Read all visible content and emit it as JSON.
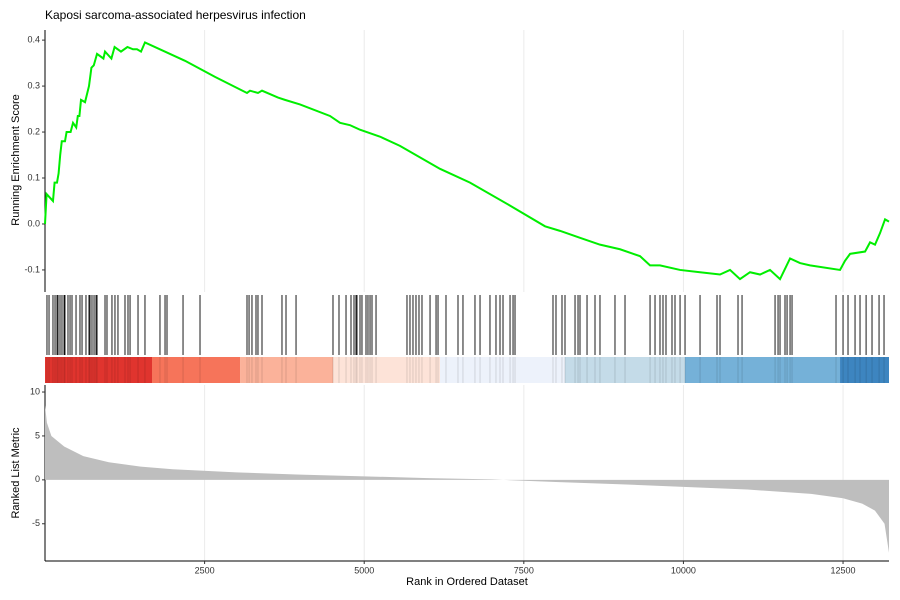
{
  "chart_data": [
    {
      "type": "line",
      "title": "Kaposi sarcoma-associated herpesvirus infection",
      "ylabel": "Running Enrichment Score",
      "color": "#00ee00",
      "xlim": [
        0,
        13220
      ],
      "ylim": [
        -0.148,
        0.422
      ],
      "grid": true,
      "yticks": [
        -0.1,
        {
          "value": 0,
          "label": "0.0"
        },
        0.1,
        0.2,
        0.3,
        0.4
      ],
      "x": [
        0,
        25,
        125,
        150,
        188,
        213,
        238,
        263,
        313,
        338,
        401,
        439,
        489,
        514,
        539,
        564,
        627,
        689,
        727,
        764,
        815,
        915,
        940,
        1040,
        1090,
        1190,
        1291,
        1378,
        1441,
        1504,
        1566,
        2193,
        2663,
        3164,
        3211,
        3336,
        3399,
        3650,
        3759,
        3994,
        4464,
        4621,
        4777,
        4934,
        5247,
        5560,
        6187,
        6657,
        7284,
        7832,
        8067,
        8380,
        8693,
        9007,
        9320,
        9477,
        9633,
        9947,
        10260,
        10573,
        10730,
        10886,
        11043,
        11200,
        11356,
        11513,
        11670,
        11826,
        11983,
        12453,
        12531,
        12610,
        12845,
        12923,
        13001,
        13079,
        13158,
        13220
      ],
      "values": [
        0.0,
        0.065,
        0.05,
        0.09,
        0.09,
        0.11,
        0.15,
        0.18,
        0.18,
        0.2,
        0.2,
        0.22,
        0.21,
        0.235,
        0.235,
        0.27,
        0.265,
        0.3,
        0.34,
        0.345,
        0.37,
        0.36,
        0.375,
        0.36,
        0.385,
        0.375,
        0.385,
        0.38,
        0.38,
        0.375,
        0.395,
        0.355,
        0.32,
        0.285,
        0.29,
        0.285,
        0.29,
        0.275,
        0.27,
        0.26,
        0.235,
        0.22,
        0.215,
        0.205,
        0.19,
        0.17,
        0.12,
        0.09,
        0.04,
        -0.005,
        -0.015,
        -0.03,
        -0.045,
        -0.055,
        -0.07,
        -0.09,
        -0.09,
        -0.1,
        -0.105,
        -0.11,
        -0.1,
        -0.12,
        -0.105,
        -0.11,
        -0.1,
        -0.12,
        -0.075,
        -0.085,
        -0.09,
        -0.1,
        -0.08,
        -0.065,
        -0.06,
        -0.04,
        -0.045,
        -0.02,
        0.01,
        0.005
      ]
    },
    {
      "type": "rug",
      "color": "#000000",
      "xlim": [
        0,
        13220
      ],
      "hits": [
        31,
        63,
        125,
        157,
        188,
        204,
        235,
        266,
        298,
        313,
        360,
        392,
        423,
        486,
        548,
        580,
        642,
        689,
        705,
        736,
        768,
        799,
        815,
        940,
        971,
        1049,
        1096,
        1143,
        1253,
        1300,
        1332,
        1457,
        1566,
        1801,
        1880,
        1911,
        2162,
        2428,
        3164,
        3196,
        3242,
        3305,
        3336,
        3399,
        3712,
        3775,
        3932,
        4511,
        4605,
        4715,
        4793,
        4840,
        4871,
        4887,
        4934,
        4965,
        5028,
        5059,
        5091,
        5122,
        5185,
        5670,
        5717,
        5764,
        5811,
        5858,
        5905,
        6031,
        6125,
        6156,
        6281,
        6469,
        6547,
        6735,
        6814,
        6970,
        7064,
        7127,
        7174,
        7284,
        7331,
        7362,
        7957,
        8004,
        8098,
        8145,
        8302,
        8349,
        8380,
        8490,
        8615,
        8693,
        8928,
        9085,
        9477,
        9555,
        9633,
        9680,
        9727,
        9821,
        9868,
        9947,
        10025,
        10260,
        10526,
        10573,
        10855,
        10918,
        11435,
        11482,
        11513,
        11591,
        11623,
        11670,
        11701,
        12390,
        12500,
        12578,
        12688,
        12766,
        12861,
        12954,
        13064,
        13142
      ],
      "band_edges": [
        0,
        1676,
        3055,
        4511,
        6187,
        8145,
        10025,
        12453,
        13220
      ],
      "band_colors": [
        "#e0342e",
        "#f6745a",
        "#fbb29a",
        "#fde3d8",
        "#edf2fb",
        "#c4dbe8",
        "#75b1d8",
        "#3d85c0"
      ]
    },
    {
      "type": "area",
      "xlabel": "Rank in Ordered Dataset",
      "ylabel": "Ranked List Metric",
      "color": "#bebebe",
      "xlim": [
        0,
        13220
      ],
      "ylim": [
        -9.24,
        10.8
      ],
      "grid": true,
      "xticks": [
        2500,
        5000,
        7500,
        10000,
        12500
      ],
      "yticks": [
        -5,
        0,
        5,
        10
      ],
      "x": [
        0,
        30,
        100,
        300,
        600,
        1000,
        1500,
        2000,
        3000,
        4000,
        5000,
        6000,
        7000,
        7500,
        8000,
        9000,
        10000,
        11000,
        12000,
        12500,
        12800,
        13000,
        13150,
        13220
      ],
      "values": [
        8.5,
        6.5,
        5,
        3.8,
        2.7,
        2,
        1.5,
        1.2,
        0.85,
        0.6,
        0.4,
        0.2,
        0.05,
        -0.1,
        -0.25,
        -0.5,
        -0.8,
        -1.1,
        -1.6,
        -2.1,
        -2.7,
        -3.5,
        -5,
        -8.3
      ]
    }
  ]
}
